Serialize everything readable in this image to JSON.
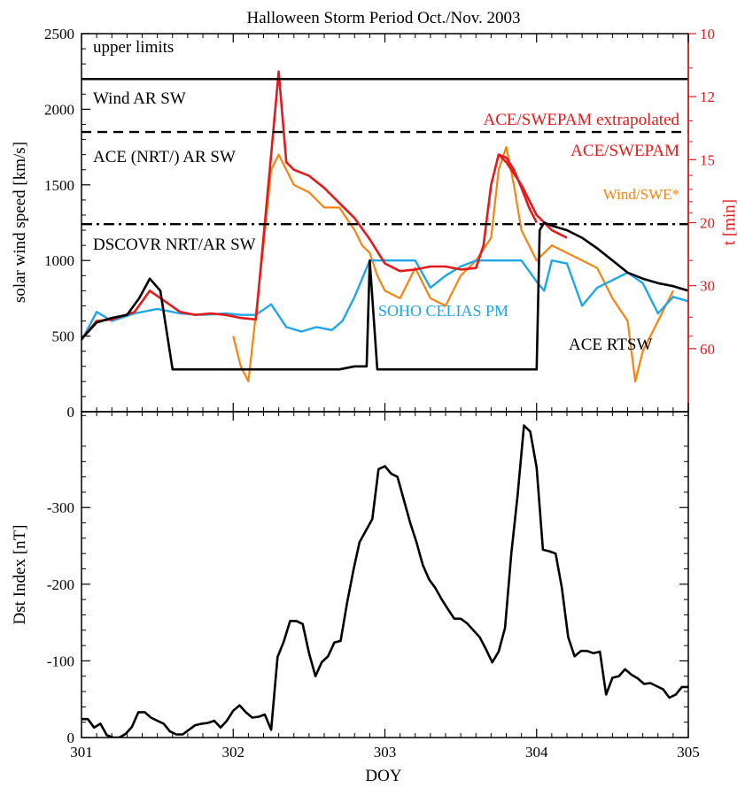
{
  "colors": {
    "axis": "#000000",
    "red_axis": "#e41a1c",
    "ace_swepam": "#e41a1c",
    "wind_swe": "#f7840f",
    "soho": "#1ea7e8",
    "ace_rtsw": "#000000",
    "dst": "#000000"
  },
  "chart_data": [
    {
      "type": "line",
      "title": "Halloween Storm Period Oct./Nov. 2003",
      "xlabel": "",
      "ylabel": "solar wind speed [km/s]",
      "y2label": "t [min]",
      "xlim": [
        301,
        305
      ],
      "ylim": [
        0,
        2500
      ],
      "yticks": [
        0,
        500,
        1000,
        1500,
        2000,
        2500
      ],
      "y2ticks": [
        10,
        12,
        15,
        20,
        30,
        60
      ],
      "y2_rule": "t = 1.5e6 km / speed",
      "grid": false,
      "reference_lines": [
        {
          "label": "upper limits",
          "value": null,
          "style": "none"
        },
        {
          "label": "Wind AR SW",
          "value": 2200,
          "style": "solid"
        },
        {
          "label": "ACE (NRT/) AR SW",
          "value": 1850,
          "style": "dashed"
        },
        {
          "label": "DSCOVR NRT/AR SW",
          "value": 1240,
          "style": "dashdot"
        }
      ],
      "series": [
        {
          "name": "ACE/SWEPAM extrapolated",
          "x": [
            301.0,
            301.1,
            301.2,
            301.35,
            301.45,
            301.55,
            301.65,
            301.75,
            301.85,
            301.95,
            302.05,
            302.15,
            302.25,
            302.3,
            302.35,
            302.4,
            302.5,
            302.6,
            302.7,
            302.8,
            302.9,
            303.0,
            303.1,
            303.2,
            303.3,
            303.4,
            303.5,
            303.6,
            303.65,
            303.7,
            303.75,
            303.8,
            303.9,
            304.0,
            304.1,
            304.2
          ],
          "values": [
            480,
            600,
            610,
            660,
            800,
            730,
            660,
            640,
            650,
            640,
            620,
            610,
            1700,
            2250,
            1650,
            1600,
            1560,
            1480,
            1380,
            1280,
            1140,
            980,
            930,
            940,
            960,
            960,
            940,
            950,
            1100,
            1500,
            1700,
            1650,
            1500,
            1300,
            1200,
            1150
          ]
        },
        {
          "name": "ACE/SWEPAM",
          "x": [
            303.75,
            303.8,
            303.85,
            303.9,
            303.95,
            304.0
          ],
          "values": [
            1700,
            1680,
            1600,
            1480,
            1350,
            1250
          ]
        },
        {
          "name": "Wind/SWE",
          "x": [
            302.0,
            302.05,
            302.1,
            302.2,
            302.25,
            302.3,
            302.4,
            302.5,
            302.6,
            302.7,
            302.8,
            302.85,
            302.9,
            302.95,
            303.0,
            303.1,
            303.2,
            303.3,
            303.4,
            303.5,
            303.6,
            303.7,
            303.75,
            303.8,
            303.85,
            303.9,
            303.95,
            304.0,
            304.1,
            304.2,
            304.3,
            304.4,
            304.5,
            304.6,
            304.65,
            304.7,
            304.8,
            304.9
          ],
          "values": [
            500,
            300,
            200,
            1100,
            1600,
            1700,
            1500,
            1450,
            1350,
            1350,
            1200,
            1100,
            1050,
            900,
            800,
            750,
            950,
            750,
            700,
            900,
            1000,
            1150,
            1600,
            1750,
            1500,
            1200,
            1100,
            1000,
            1100,
            1050,
            1000,
            950,
            750,
            600,
            200,
            400,
            600,
            800
          ]
        },
        {
          "name": "SOHO CELIAS PM",
          "x": [
            301.0,
            301.1,
            301.2,
            301.35,
            301.5,
            301.65,
            301.8,
            301.95,
            302.05,
            302.15,
            302.25,
            302.35,
            302.45,
            302.55,
            302.65,
            302.72,
            302.8,
            302.9,
            303.0,
            303.1,
            303.2,
            303.3,
            303.4,
            303.5,
            303.6,
            303.7,
            303.8,
            303.9,
            304.0,
            304.05,
            304.1,
            304.2,
            304.3,
            304.4,
            304.5,
            304.6,
            304.7,
            304.8,
            304.9,
            305.0
          ],
          "values": [
            470,
            660,
            600,
            650,
            680,
            650,
            640,
            650,
            640,
            640,
            710,
            560,
            530,
            560,
            540,
            600,
            760,
            1000,
            1000,
            1000,
            1000,
            820,
            900,
            960,
            1000,
            1000,
            1000,
            1000,
            860,
            800,
            1000,
            980,
            700,
            820,
            870,
            920,
            850,
            650,
            760,
            730
          ]
        },
        {
          "name": "ACE RTSW",
          "x": [
            301.0,
            301.1,
            301.2,
            301.3,
            301.38,
            301.45,
            301.52,
            301.6,
            301.7,
            301.8,
            301.9,
            302.0,
            302.1,
            302.2,
            302.3,
            302.4,
            302.5,
            302.6,
            302.7,
            302.8,
            302.88,
            302.9,
            302.95,
            303.0,
            303.1,
            303.2,
            303.3,
            303.4,
            303.5,
            303.6,
            303.7,
            303.8,
            303.9,
            304.0,
            304.02,
            304.05,
            304.1,
            304.2,
            304.3,
            304.4,
            304.5,
            304.6,
            304.7,
            304.8,
            304.9,
            305.0
          ],
          "values": [
            480,
            590,
            620,
            640,
            750,
            880,
            800,
            280,
            280,
            280,
            280,
            280,
            280,
            280,
            280,
            280,
            280,
            280,
            280,
            300,
            300,
            1000,
            280,
            280,
            280,
            280,
            280,
            280,
            280,
            280,
            280,
            280,
            280,
            280,
            1200,
            1250,
            1230,
            1200,
            1150,
            1080,
            1000,
            920,
            880,
            850,
            830,
            800
          ]
        }
      ],
      "series_labels": [
        {
          "name": "ACE/SWEPAM extrapolated",
          "color_key": "ace_swepam"
        },
        {
          "name": "ACE/SWEPAM",
          "color_key": "ace_swepam"
        },
        {
          "name": "Wind/SWE*",
          "color_key": "wind_swe"
        },
        {
          "name": "SOHO CELIAS PM",
          "color_key": "soho"
        },
        {
          "name": "ACE RTSW",
          "color_key": "ace_rtsw"
        }
      ]
    },
    {
      "type": "line",
      "title": "",
      "xlabel": "DOY",
      "ylabel": "Dst Index [nT]",
      "xlim": [
        301,
        305
      ],
      "ylim": [
        0,
        -425
      ],
      "xticks": [
        301,
        302,
        303,
        304,
        305
      ],
      "yticks": [
        0,
        -100,
        -200,
        -300
      ],
      "grid": false,
      "series": [
        {
          "name": "",
          "x": [
            301.0,
            301.042,
            301.083,
            301.125,
            301.167,
            301.208,
            301.25,
            301.292,
            301.333,
            301.375,
            301.417,
            301.458,
            301.5,
            301.542,
            301.583,
            301.625,
            301.667,
            301.708,
            301.75,
            301.792,
            301.833,
            301.875,
            301.917,
            301.958,
            302.0,
            302.042,
            302.083,
            302.125,
            302.167,
            302.208,
            302.25,
            302.292,
            302.333,
            302.375,
            302.417,
            302.458,
            302.5,
            302.542,
            302.583,
            302.625,
            302.667,
            302.708,
            302.75,
            302.792,
            302.833,
            302.875,
            302.917,
            302.958,
            303.0,
            303.042,
            303.083,
            303.125,
            303.167,
            303.208,
            303.25,
            303.292,
            303.333,
            303.375,
            303.417,
            303.458,
            303.5,
            303.542,
            303.583,
            303.625,
            303.667,
            303.708,
            303.75,
            303.792,
            303.833,
            303.875,
            303.917,
            303.958,
            304.0,
            304.042,
            304.083,
            304.125,
            304.167,
            304.208,
            304.25,
            304.292,
            304.333,
            304.375,
            304.417,
            304.458,
            304.5,
            304.542,
            304.583,
            304.625,
            304.667,
            304.708,
            304.75,
            304.792,
            304.833,
            304.875,
            304.917,
            304.958,
            305.0
          ],
          "values": [
            -24,
            -24,
            -13,
            -18,
            -3,
            0,
            0,
            -5,
            -14,
            -33,
            -33,
            -26,
            -22,
            -18,
            -8,
            -4,
            -4,
            -10,
            -16,
            -18,
            -19,
            -22,
            -13,
            -22,
            -35,
            -42,
            -33,
            -26,
            -27,
            -30,
            -10,
            -105,
            -125,
            -152,
            -152,
            -148,
            -110,
            -80,
            -98,
            -106,
            -124,
            -126,
            -175,
            -218,
            -255,
            -270,
            -285,
            -350,
            -354,
            -344,
            -340,
            -310,
            -280,
            -255,
            -225,
            -206,
            -195,
            -180,
            -167,
            -155,
            -155,
            -149,
            -140,
            -131,
            -115,
            -98,
            -112,
            -143,
            -240,
            -316,
            -407,
            -399,
            -352,
            -245,
            -243,
            -240,
            -195,
            -131,
            -106,
            -113,
            -113,
            -110,
            -112,
            -56,
            -78,
            -80,
            -89,
            -82,
            -77,
            -70,
            -71,
            -67,
            -63,
            -52,
            -56,
            -66,
            -66
          ]
        }
      ]
    }
  ]
}
